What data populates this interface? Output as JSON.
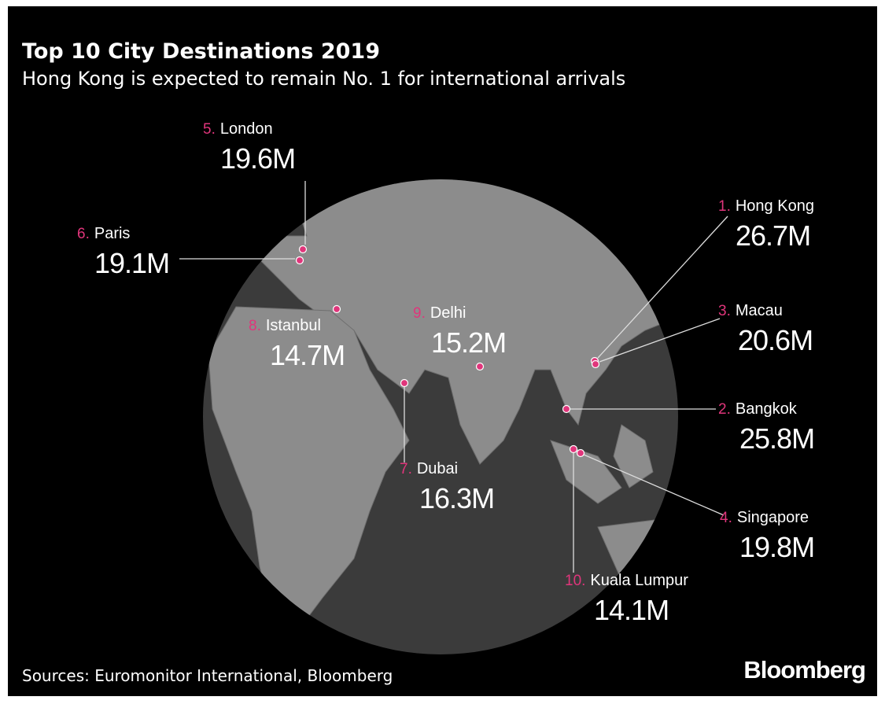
{
  "header": {
    "title": "Top 10 City Destinations 2019",
    "subtitle": "Hong Kong is expected to remain No. 1 for international arrivals"
  },
  "cities": [
    {
      "rank": "1.",
      "name": "Hong Kong",
      "arrivals": "26.7M"
    },
    {
      "rank": "2.",
      "name": "Bangkok",
      "arrivals": "25.8M"
    },
    {
      "rank": "3.",
      "name": "Macau",
      "arrivals": "20.6M"
    },
    {
      "rank": "4.",
      "name": "Singapore",
      "arrivals": "19.8M"
    },
    {
      "rank": "5.",
      "name": "London",
      "arrivals": "19.6M"
    },
    {
      "rank": "6.",
      "name": "Paris",
      "arrivals": "19.1M"
    },
    {
      "rank": "7.",
      "name": "Dubai",
      "arrivals": "16.3M"
    },
    {
      "rank": "8.",
      "name": "Istanbul",
      "arrivals": "14.7M"
    },
    {
      "rank": "9.",
      "name": "Delhi",
      "arrivals": "15.2M"
    },
    {
      "rank": "10.",
      "name": "Kuala Lumpur",
      "arrivals": "14.1M"
    }
  ],
  "footer": {
    "source": "Sources: Euromonitor International, Bloomberg",
    "logo": "Bloomberg"
  }
}
